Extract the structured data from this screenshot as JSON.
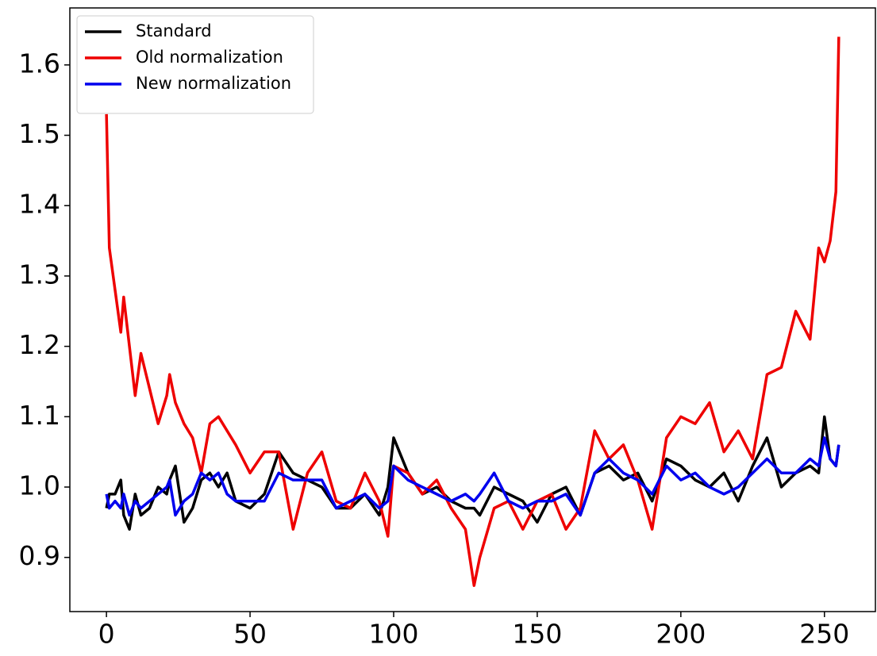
{
  "chart_data": {
    "type": "line",
    "x": [
      0,
      1,
      3,
      5,
      6,
      8,
      10,
      12,
      15,
      18,
      21,
      22,
      24,
      27,
      30,
      33,
      36,
      39,
      42,
      45,
      50,
      55,
      60,
      65,
      70,
      75,
      80,
      85,
      90,
      95,
      98,
      100,
      105,
      110,
      115,
      120,
      125,
      128,
      130,
      135,
      140,
      145,
      150,
      155,
      160,
      165,
      170,
      175,
      180,
      185,
      190,
      195,
      200,
      205,
      210,
      215,
      220,
      225,
      230,
      235,
      240,
      245,
      248,
      250,
      252,
      254,
      255
    ],
    "series": [
      {
        "name": "Standard",
        "color": "#000000",
        "values": [
          0.97,
          0.99,
          0.99,
          1.01,
          0.96,
          0.94,
          0.99,
          0.96,
          0.97,
          1.0,
          0.99,
          1.01,
          1.03,
          0.95,
          0.97,
          1.01,
          1.02,
          1.0,
          1.02,
          0.98,
          0.97,
          0.99,
          1.05,
          1.02,
          1.01,
          1.0,
          0.97,
          0.97,
          0.99,
          0.96,
          1.0,
          1.07,
          1.02,
          0.99,
          1.0,
          0.98,
          0.97,
          0.97,
          0.96,
          1.0,
          0.99,
          0.98,
          0.95,
          0.99,
          1.0,
          0.96,
          1.02,
          1.03,
          1.01,
          1.02,
          0.98,
          1.04,
          1.03,
          1.01,
          1.0,
          1.02,
          0.98,
          1.03,
          1.07,
          1.0,
          1.02,
          1.03,
          1.02,
          1.1,
          1.04,
          1.03,
          1.06
        ]
      },
      {
        "name": "Old normalization",
        "color": "#ee0000",
        "values": [
          1.53,
          1.34,
          1.28,
          1.22,
          1.27,
          1.2,
          1.13,
          1.19,
          1.14,
          1.09,
          1.13,
          1.16,
          1.12,
          1.09,
          1.07,
          1.02,
          1.09,
          1.1,
          1.08,
          1.06,
          1.02,
          1.05,
          1.05,
          0.94,
          1.02,
          1.05,
          0.98,
          0.97,
          1.02,
          0.98,
          0.93,
          1.03,
          1.02,
          0.99,
          1.01,
          0.97,
          0.94,
          0.86,
          0.9,
          0.97,
          0.98,
          0.94,
          0.98,
          0.99,
          0.94,
          0.97,
          1.08,
          1.04,
          1.06,
          1.01,
          0.94,
          1.07,
          1.1,
          1.09,
          1.12,
          1.05,
          1.08,
          1.04,
          1.16,
          1.17,
          1.25,
          1.21,
          1.34,
          1.32,
          1.35,
          1.42,
          1.64
        ]
      },
      {
        "name": "New normalization",
        "color": "#0000ee",
        "values": [
          0.99,
          0.97,
          0.98,
          0.97,
          0.99,
          0.96,
          0.98,
          0.97,
          0.98,
          0.99,
          1.0,
          1.01,
          0.96,
          0.98,
          0.99,
          1.02,
          1.01,
          1.02,
          0.99,
          0.98,
          0.98,
          0.98,
          1.02,
          1.01,
          1.01,
          1.01,
          0.97,
          0.98,
          0.99,
          0.97,
          0.98,
          1.03,
          1.01,
          1.0,
          0.99,
          0.98,
          0.99,
          0.98,
          0.99,
          1.02,
          0.98,
          0.97,
          0.98,
          0.98,
          0.99,
          0.96,
          1.02,
          1.04,
          1.02,
          1.01,
          0.99,
          1.03,
          1.01,
          1.02,
          1.0,
          0.99,
          1.0,
          1.02,
          1.04,
          1.02,
          1.02,
          1.04,
          1.03,
          1.07,
          1.04,
          1.03,
          1.06
        ]
      }
    ],
    "xlim": [
      -12.75,
      267.75
    ],
    "xticks": [
      0,
      50,
      100,
      150,
      200,
      250
    ],
    "ylim": [
      0.823,
      1.681
    ],
    "yticks": [
      0.9,
      {
        "value": 1.0,
        "label": "1.0"
      },
      1.1,
      1.2,
      1.3,
      1.4,
      1.5,
      1.6
    ],
    "legend": "upper left",
    "grid": false
  }
}
